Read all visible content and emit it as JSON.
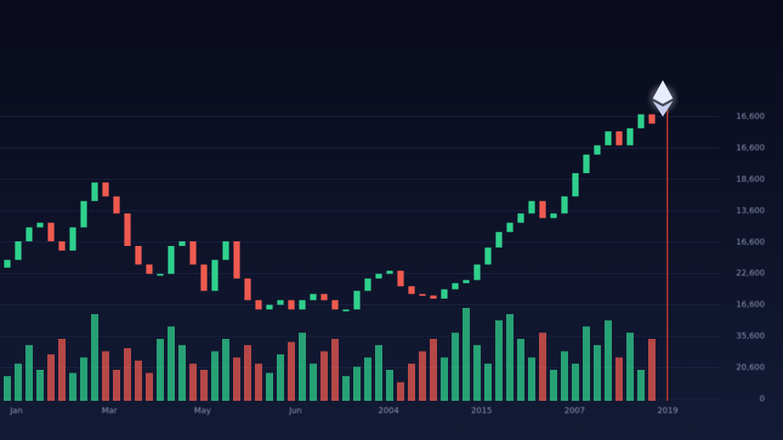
{
  "chart_data": {
    "type": "candlestick",
    "x_labels": [
      "Jan",
      "Mar",
      "May",
      "Jun",
      "2004",
      "2015",
      "2007",
      "2019"
    ],
    "price_labels": [
      "16,600",
      "16,600",
      "18,600",
      "13,600",
      "16,600",
      "22,600",
      "16,600",
      "35,600",
      "20,600",
      "0"
    ],
    "ylim": [
      0,
      100
    ],
    "up_color": "#2fd08c",
    "down_color": "#ee5a4f",
    "open": [
      43,
      45.5,
      51.5,
      56,
      57.5,
      51.5,
      48.5,
      56,
      64.5,
      70.5,
      66,
      60.5,
      50,
      44,
      41,
      41,
      50,
      51.5,
      44,
      35.5,
      45.5,
      51.5,
      39.5,
      32.5,
      29.5,
      31,
      32.5,
      29.5,
      32.5,
      34.5,
      32.5,
      29.5,
      29.5,
      35.5,
      39.5,
      41,
      42,
      37,
      34.5,
      34,
      33,
      36,
      38,
      39,
      44,
      49.5,
      54.5,
      57.5,
      60.5,
      64.5,
      59,
      60.5,
      66,
      73.5,
      79.5,
      82.5,
      87,
      82.5,
      88,
      92.5
    ],
    "close": [
      45.5,
      51.5,
      56,
      57.5,
      51.5,
      48.5,
      56,
      64.5,
      70.5,
      66,
      60.5,
      50,
      44,
      41,
      41,
      50,
      51.5,
      44,
      35.5,
      45.5,
      51.5,
      39.5,
      32.5,
      29.5,
      31,
      32.5,
      29.5,
      32.5,
      34.5,
      32.5,
      29.5,
      29.5,
      35.5,
      39.5,
      41,
      42,
      37,
      34.5,
      34,
      33,
      36,
      38,
      39,
      44,
      49.5,
      54.5,
      57.5,
      60.5,
      64.5,
      59,
      60.5,
      66,
      73.5,
      79.5,
      82.5,
      87,
      82.5,
      88,
      92.5,
      89.5
    ],
    "volume": [
      8,
      12,
      18,
      10,
      15,
      20,
      9,
      14,
      28,
      16,
      10,
      17,
      13,
      9,
      20,
      24,
      18,
      12,
      10,
      16,
      20,
      14,
      18,
      12,
      9,
      15,
      19,
      22,
      12,
      16,
      20,
      8,
      11,
      14,
      18,
      10,
      6,
      12,
      16,
      20,
      14,
      22,
      30,
      18,
      12,
      26,
      28,
      20,
      14,
      22,
      10,
      16,
      12,
      24,
      18,
      26,
      14,
      22,
      10,
      20
    ]
  }
}
